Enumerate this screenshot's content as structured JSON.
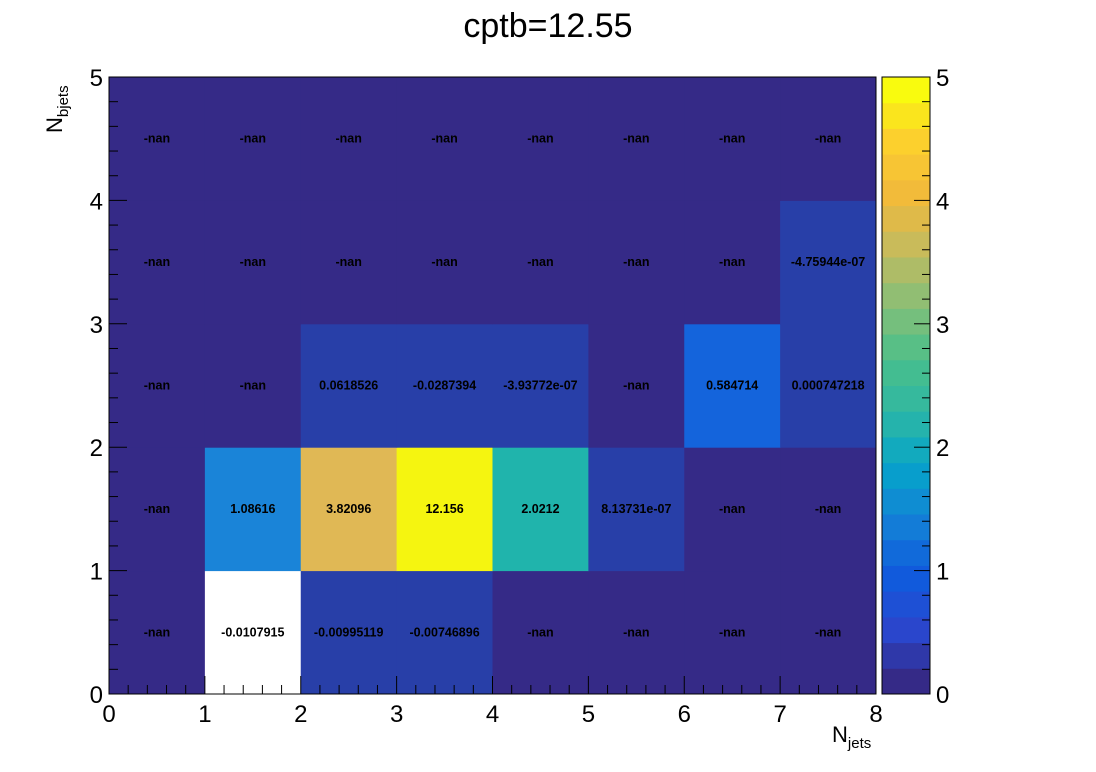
{
  "chart_data": {
    "type": "heatmap",
    "title": "cptb=12.55",
    "xlabel": "N",
    "xlabel_sub": "jets",
    "ylabel": "N",
    "ylabel_sub": "bjets",
    "xlim": [
      0,
      8
    ],
    "ylim": [
      0,
      5
    ],
    "x_bins": [
      0,
      1,
      2,
      3,
      4,
      5,
      6,
      7,
      8
    ],
    "y_bins": [
      0,
      1,
      2,
      3,
      4,
      5
    ],
    "x_ticks": [
      "0",
      "1",
      "2",
      "3",
      "4",
      "5",
      "6",
      "7",
      "8"
    ],
    "y_ticks": [
      "0",
      "1",
      "2",
      "3",
      "4",
      "5"
    ],
    "z_range": [
      0,
      5
    ],
    "colorbar_ticks": [
      "0",
      "1",
      "2",
      "3",
      "4",
      "5"
    ],
    "colormap": [
      "#352a87",
      "#2947cf",
      "#0f5cdd",
      "#1481d6",
      "#06a4ca",
      "#2eb7a4",
      "#4bbf8a",
      "#87bf77",
      "#c3bb5f",
      "#f1b93b",
      "#fcce2e",
      "#f9fb0e"
    ],
    "cells": [
      {
        "x": 0,
        "y": 0,
        "label": "-nan",
        "value": null
      },
      {
        "x": 1,
        "y": 0,
        "label": "-0.0107915",
        "value": -0.0107915
      },
      {
        "x": 2,
        "y": 0,
        "label": "-0.00995119",
        "value": -0.00995119
      },
      {
        "x": 3,
        "y": 0,
        "label": "-0.00746896",
        "value": -0.00746896
      },
      {
        "x": 4,
        "y": 0,
        "label": "-nan",
        "value": null
      },
      {
        "x": 5,
        "y": 0,
        "label": "-nan",
        "value": null
      },
      {
        "x": 6,
        "y": 0,
        "label": "-nan",
        "value": null
      },
      {
        "x": 7,
        "y": 0,
        "label": "-nan",
        "value": null
      },
      {
        "x": 0,
        "y": 1,
        "label": "-nan",
        "value": null
      },
      {
        "x": 1,
        "y": 1,
        "label": "1.08616",
        "value": 1.08616
      },
      {
        "x": 2,
        "y": 1,
        "label": "3.82096",
        "value": 3.82096
      },
      {
        "x": 3,
        "y": 1,
        "label": "12.156",
        "value": 12.156
      },
      {
        "x": 4,
        "y": 1,
        "label": "2.0212",
        "value": 2.0212
      },
      {
        "x": 5,
        "y": 1,
        "label": "8.13731e-07",
        "value": 8.13731e-07
      },
      {
        "x": 6,
        "y": 1,
        "label": "-nan",
        "value": null
      },
      {
        "x": 7,
        "y": 1,
        "label": "-nan",
        "value": null
      },
      {
        "x": 0,
        "y": 2,
        "label": "-nan",
        "value": null
      },
      {
        "x": 1,
        "y": 2,
        "label": "-nan",
        "value": null
      },
      {
        "x": 2,
        "y": 2,
        "label": "0.0618526",
        "value": 0.0618526
      },
      {
        "x": 3,
        "y": 2,
        "label": "-0.0287394",
        "value": -0.0287394
      },
      {
        "x": 4,
        "y": 2,
        "label": "-3.93772e-07",
        "value": -3.93772e-07
      },
      {
        "x": 5,
        "y": 2,
        "label": "-nan",
        "value": null
      },
      {
        "x": 6,
        "y": 2,
        "label": "0.584714",
        "value": 0.584714
      },
      {
        "x": 7,
        "y": 2,
        "label": "0.000747218",
        "value": 0.000747218
      },
      {
        "x": 0,
        "y": 3,
        "label": "-nan",
        "value": null
      },
      {
        "x": 1,
        "y": 3,
        "label": "-nan",
        "value": null
      },
      {
        "x": 2,
        "y": 3,
        "label": "-nan",
        "value": null
      },
      {
        "x": 3,
        "y": 3,
        "label": "-nan",
        "value": null
      },
      {
        "x": 4,
        "y": 3,
        "label": "-nan",
        "value": null
      },
      {
        "x": 5,
        "y": 3,
        "label": "-nan",
        "value": null
      },
      {
        "x": 6,
        "y": 3,
        "label": "-nan",
        "value": null
      },
      {
        "x": 7,
        "y": 3,
        "label": "-4.75944e-07",
        "value": -4.75944e-07
      },
      {
        "x": 0,
        "y": 4,
        "label": "-nan",
        "value": null
      },
      {
        "x": 1,
        "y": 4,
        "label": "-nan",
        "value": null
      },
      {
        "x": 2,
        "y": 4,
        "label": "-nan",
        "value": null
      },
      {
        "x": 3,
        "y": 4,
        "label": "-nan",
        "value": null
      },
      {
        "x": 4,
        "y": 4,
        "label": "-nan",
        "value": null
      },
      {
        "x": 5,
        "y": 4,
        "label": "-nan",
        "value": null
      },
      {
        "x": 6,
        "y": 4,
        "label": "-nan",
        "value": null
      },
      {
        "x": 7,
        "y": 4,
        "label": "-nan",
        "value": null
      }
    ],
    "cell_colors": {
      "0,0": "#352a87",
      "1,0": "#ffffff",
      "2,0": "#283fa8",
      "3,0": "#283fa8",
      "4,0": "#352a87",
      "5,0": "#352a87",
      "6,0": "#352a87",
      "7,0": "#352a87",
      "0,1": "#352a87",
      "1,1": "#1a84d8",
      "2,1": "#e0b855",
      "3,1": "#f5f510",
      "4,1": "#20b4ac",
      "5,1": "#283fa8",
      "6,1": "#352a87",
      "7,1": "#352a87",
      "0,2": "#352a87",
      "1,2": "#352a87",
      "2,2": "#283fa8",
      "3,2": "#283fa8",
      "4,2": "#283fa8",
      "5,2": "#352a87",
      "6,2": "#1464dc",
      "7,2": "#283fa8",
      "0,3": "#352a87",
      "1,3": "#352a87",
      "2,3": "#352a87",
      "3,3": "#352a87",
      "4,3": "#352a87",
      "5,3": "#352a87",
      "6,3": "#352a87",
      "7,3": "#283fa8",
      "0,4": "#352a87",
      "1,4": "#352a87",
      "2,4": "#352a87",
      "3,4": "#352a87",
      "4,4": "#352a87",
      "5,4": "#352a87",
      "6,4": "#352a87",
      "7,4": "#352a87"
    }
  }
}
